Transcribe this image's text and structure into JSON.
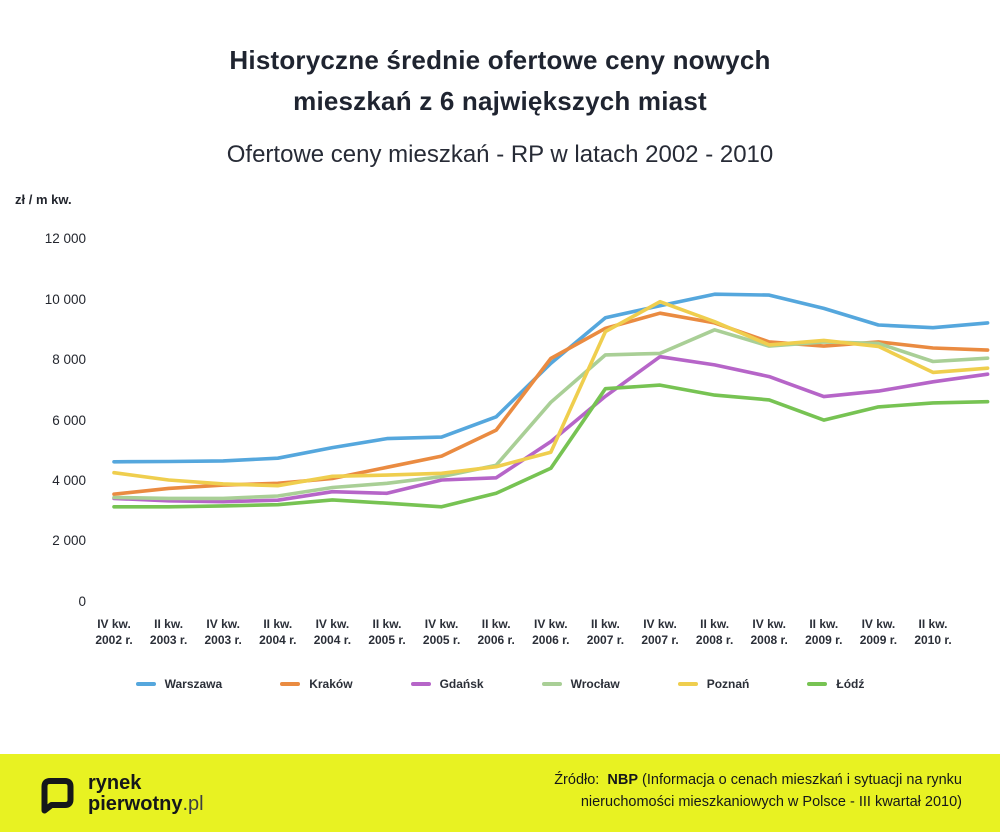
{
  "header": {
    "title_line1": "Historyczne średnie ofertowe ceny nowych",
    "title_line2": "mieszkań z 6 największych miast",
    "subtitle": "Ofertowe ceny mieszkań - RP w latach 2002 - 2010"
  },
  "chart_data": {
    "type": "line",
    "title": "Ofertowe ceny mieszkań - RP w latach 2002 - 2010",
    "ylabel": "zł / m kw.",
    "xlabel": "",
    "unit_label": "zł / m kw.",
    "ylim": [
      0,
      12000
    ],
    "grid": false,
    "legend_position": "bottom",
    "y_ticks": [
      {
        "label": "12 000",
        "value": 12000
      },
      {
        "label": "10 000",
        "value": 10000
      },
      {
        "label": "8 000",
        "value": 8000
      },
      {
        "label": "6 000",
        "value": 6000
      },
      {
        "label": "4 000",
        "value": 4000
      },
      {
        "label": "2 000",
        "value": 2000
      },
      {
        "label": "0",
        "value": 0
      }
    ],
    "x_labels": [
      {
        "quarter": "IV kw.",
        "year": "2002 r."
      },
      {
        "quarter": "II kw.",
        "year": "2003 r."
      },
      {
        "quarter": "IV kw.",
        "year": "2003 r."
      },
      {
        "quarter": "II kw.",
        "year": "2004 r."
      },
      {
        "quarter": "IV kw.",
        "year": "2004 r."
      },
      {
        "quarter": "II kw.",
        "year": "2005 r."
      },
      {
        "quarter": "IV kw.",
        "year": "2005 r."
      },
      {
        "quarter": "II kw.",
        "year": "2006 r."
      },
      {
        "quarter": "IV kw.",
        "year": "2006 r."
      },
      {
        "quarter": "II kw.",
        "year": "2007 r."
      },
      {
        "quarter": "IV kw.",
        "year": "2007 r."
      },
      {
        "quarter": "II kw.",
        "year": "2008 r."
      },
      {
        "quarter": "IV kw.",
        "year": "2008 r."
      },
      {
        "quarter": "II kw.",
        "year": "2009 r."
      },
      {
        "quarter": "IV kw.",
        "year": "2009 r."
      },
      {
        "quarter": "II kw.",
        "year": "2010 r."
      }
    ],
    "x_note": "lines extend one unlabeled quarter past the last tick",
    "series": [
      {
        "name": "Warszawa",
        "color": "#55a7dd",
        "values": [
          4630,
          4640,
          4660,
          4750,
          5100,
          5400,
          5450,
          6120,
          7890,
          9400,
          9800,
          10180,
          10150,
          9710,
          9160,
          9070,
          9230
        ]
      },
      {
        "name": "Kraków",
        "color": "#ea8b41",
        "values": [
          3560,
          3750,
          3860,
          3920,
          4080,
          4450,
          4820,
          5680,
          8050,
          9050,
          9550,
          9230,
          8600,
          8460,
          8600,
          8400,
          8330
        ]
      },
      {
        "name": "Gdańsk",
        "color": "#b665c8",
        "values": [
          3420,
          3340,
          3310,
          3360,
          3640,
          3590,
          4030,
          4100,
          5300,
          6800,
          8110,
          7840,
          7450,
          6790,
          6970,
          7280,
          7530
        ]
      },
      {
        "name": "Wrocław",
        "color": "#a9cf96",
        "values": [
          3450,
          3420,
          3420,
          3500,
          3780,
          3920,
          4140,
          4520,
          6600,
          8170,
          8220,
          9000,
          8460,
          8600,
          8550,
          7950,
          8060
        ]
      },
      {
        "name": "Poznań",
        "color": "#efce4e",
        "values": [
          4270,
          4030,
          3900,
          3840,
          4150,
          4190,
          4250,
          4470,
          4950,
          8940,
          9930,
          9270,
          8500,
          8650,
          8450,
          7590,
          7730
        ]
      },
      {
        "name": "Łódź",
        "color": "#77c353",
        "values": [
          3140,
          3140,
          3170,
          3210,
          3370,
          3260,
          3140,
          3590,
          4415,
          7050,
          7170,
          6840,
          6680,
          6010,
          6450,
          6580,
          6620
        ]
      }
    ]
  },
  "footer": {
    "background": "#e8f222",
    "logo_word1": "rynek",
    "logo_word2": "pierwotny",
    "logo_suffix": ".pl",
    "source_prefix": "Źródło:",
    "source_bold": "NBP",
    "source_line1_rest": "(Informacja o cenach mieszkań i sytuacji na rynku",
    "source_line2": "nieruchomości mieszkaniowych w Polsce - III kwartał 2010)"
  }
}
